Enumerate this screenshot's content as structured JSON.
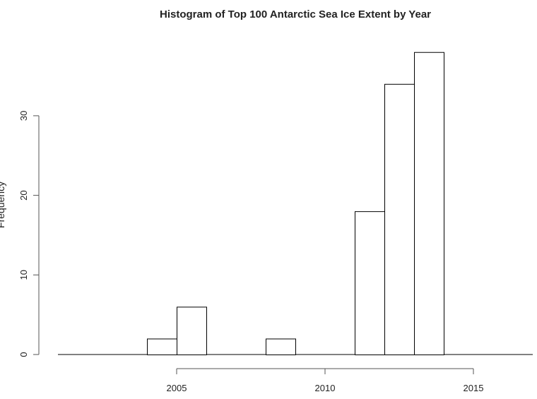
{
  "chart_data": {
    "type": "bar",
    "title": "Histogram of Top 100 Antarctic Sea Ice Extent by Year",
    "xlabel": "",
    "ylabel": "Frequency",
    "bin_edges": [
      2001,
      2002,
      2003,
      2004,
      2005,
      2006,
      2007,
      2008,
      2009,
      2010,
      2011,
      2012,
      2013,
      2014,
      2015,
      2016,
      2017
    ],
    "values": [
      0,
      0,
      0,
      2,
      6,
      0,
      0,
      2,
      0,
      0,
      18,
      34,
      38,
      0,
      0,
      0
    ],
    "xlim": [
      2001,
      2017
    ],
    "ylim": [
      0,
      38
    ],
    "x_ticks": [
      "2005",
      "2010",
      "2015"
    ],
    "y_ticks": [
      "0",
      "10",
      "20",
      "30"
    ],
    "grid": false,
    "bar_fill": "#ffffff",
    "bar_stroke": "#000000"
  }
}
